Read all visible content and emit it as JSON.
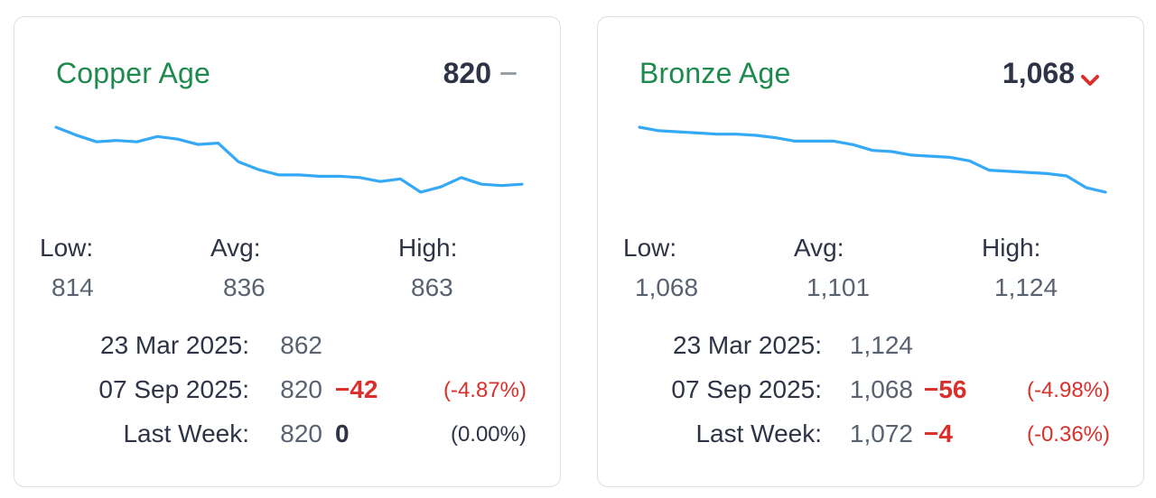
{
  "cards": [
    {
      "title": "Copper Age",
      "current": "820",
      "trend": "flat",
      "low_label": "Low:",
      "low": "814",
      "avg_label": "Avg:",
      "avg": "836",
      "high_label": "High:",
      "high": "863",
      "rows": [
        {
          "label": "23 Mar 2025:",
          "value": "862",
          "change": "",
          "pct": ""
        },
        {
          "label": "07 Sep 2025:",
          "value": "820",
          "change": "−42",
          "pct": "(-4.87%)"
        },
        {
          "label": "Last Week:",
          "value": "820",
          "change": "0",
          "pct": "(0.00%)"
        }
      ],
      "sparkline": [
        863,
        857,
        852,
        853,
        852,
        856,
        854,
        850,
        851,
        837,
        831,
        827,
        827,
        826,
        826,
        825,
        822,
        824,
        814,
        818,
        825,
        820,
        819,
        820
      ],
      "line_color": "#35a9f5"
    },
    {
      "title": "Bronze Age",
      "current": "1,068",
      "trend": "down",
      "low_label": "Low:",
      "low": "1,068",
      "avg_label": "Avg:",
      "avg": "1,101",
      "high_label": "High:",
      "high": "1,124",
      "rows": [
        {
          "label": "23 Mar 2025:",
          "value": "1,124",
          "change": "",
          "pct": ""
        },
        {
          "label": "07 Sep 2025:",
          "value": "1,068",
          "change": "−56",
          "pct": "(-4.98%)"
        },
        {
          "label": "Last Week:",
          "value": "1,072",
          "change": "−4",
          "pct": "(-0.36%)"
        }
      ],
      "sparkline": [
        1124,
        1121,
        1120,
        1119,
        1118,
        1118,
        1117,
        1115,
        1112,
        1112,
        1112,
        1109,
        1104,
        1103,
        1100,
        1099,
        1098,
        1095,
        1087,
        1086,
        1085,
        1084,
        1082,
        1072,
        1068
      ],
      "line_color": "#35a9f5"
    }
  ],
  "colors": {
    "title": "#1e8a4e",
    "negative": "#d9302c",
    "sparkline": "#35a9f5",
    "flat_icon": "#9aa0a8"
  },
  "icons": {
    "flat": "dash-icon",
    "down": "chevron-down-icon"
  }
}
